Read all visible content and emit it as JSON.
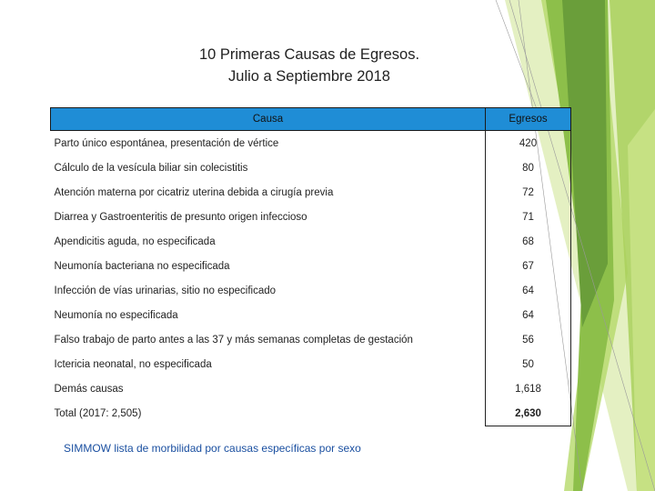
{
  "title": {
    "line1": "10 Primeras Causas de Egresos.",
    "line2": "Julio a Septiembre 2018"
  },
  "table": {
    "headers": [
      "Causa",
      "Egresos"
    ],
    "rows": [
      {
        "causa": "Parto único espontánea, presentación de vértice",
        "egresos": "420"
      },
      {
        "causa": "Cálculo de la vesícula biliar sin  colecistitis",
        "egresos": "80"
      },
      {
        "causa": "Atención materna por cicatriz uterina debida a cirugía previa",
        "egresos": "72"
      },
      {
        "causa": "Diarrea  y Gastroenteritis de presunto origen infeccioso",
        "egresos": "71"
      },
      {
        "causa": "Apendicitis aguda, no especificada",
        "egresos": "68"
      },
      {
        "causa": "Neumonía bacteriana no especificada",
        "egresos": "67"
      },
      {
        "causa": "Infección de vías urinarias, sitio no especificado",
        "egresos": "64"
      },
      {
        "causa": "Neumonía no especificada",
        "egresos": "64"
      },
      {
        "causa": "Falso trabajo de parto antes a las 37 y más semanas completas de gestación",
        "egresos": "56"
      },
      {
        "causa": "Ictericia neonatal, no especificada",
        "egresos": "50"
      },
      {
        "causa": "Demás causas",
        "egresos": "1,618"
      },
      {
        "causa": "Total (2017: 2,505)",
        "egresos": "2,630"
      }
    ]
  },
  "footnote": "SIMMOW lista de morbilidad por causas específicas por sexo",
  "colors": {
    "header_fill": "#1f8dd6",
    "deco_green_dark": "#6a9e3a",
    "deco_green_mid": "#8dbf4a",
    "deco_green_light": "#b5d96a",
    "footnote_text": "#1a4fa0"
  }
}
